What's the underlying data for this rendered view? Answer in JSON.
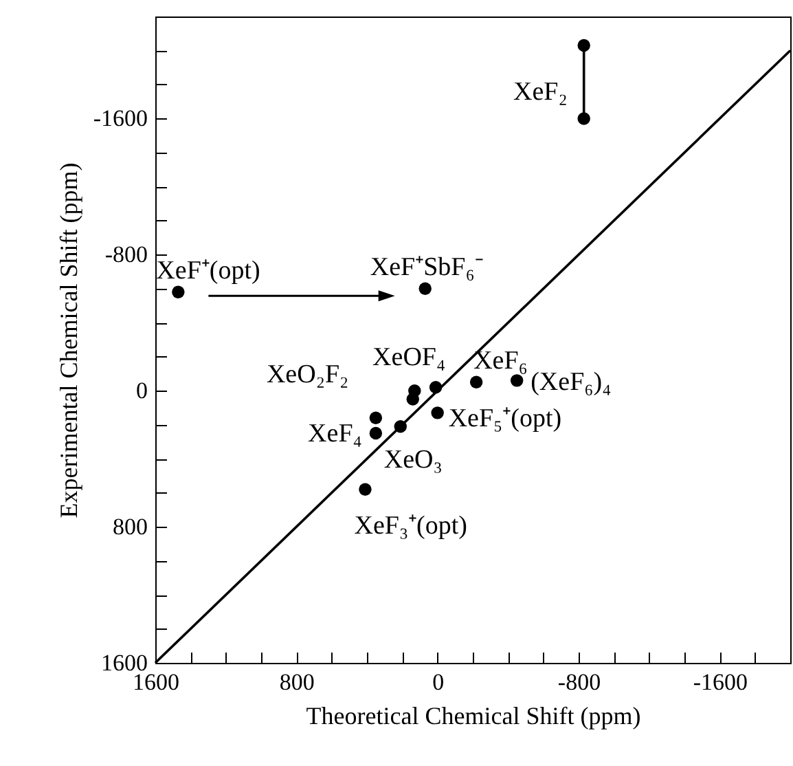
{
  "chart_data": {
    "type": "scatter",
    "xlabel": "Theoretical Chemical Shift (ppm)",
    "ylabel": "Experimental Chemical Shift (ppm)",
    "xlim": [
      1600,
      -2000
    ],
    "ylim": [
      1600,
      -2200
    ],
    "xticks": [
      1600,
      {
        "value": 1400,
        "label": null
      },
      {
        "value": 1200,
        "label": null
      },
      {
        "value": 1000,
        "label": null
      },
      800,
      {
        "value": 600,
        "label": null
      },
      {
        "value": 400,
        "label": null
      },
      {
        "value": 200,
        "label": null
      },
      0,
      {
        "value": -200,
        "label": null
      },
      {
        "value": -400,
        "label": null
      },
      {
        "value": -600,
        "label": null
      },
      -800,
      {
        "value": -1000,
        "label": null
      },
      {
        "value": -1200,
        "label": null
      },
      {
        "value": -1400,
        "label": null
      },
      -1600,
      {
        "value": -1800,
        "label": null
      },
      {
        "value": -2000,
        "label": null
      }
    ],
    "yticks": [
      1600,
      {
        "value": 1400,
        "label": null
      },
      {
        "value": 1200,
        "label": null
      },
      {
        "value": 1000,
        "label": null
      },
      800,
      {
        "value": 600,
        "label": null
      },
      {
        "value": 400,
        "label": null
      },
      {
        "value": 200,
        "label": null
      },
      0,
      {
        "value": -200,
        "label": null
      },
      {
        "value": -400,
        "label": null
      },
      {
        "value": -600,
        "label": null
      },
      -800,
      {
        "value": -1000,
        "label": null
      },
      {
        "value": -1200,
        "label": null
      },
      {
        "value": -1400,
        "label": null
      },
      -1600,
      {
        "value": -1800,
        "label": null
      },
      {
        "value": -2000,
        "label": null
      }
    ],
    "marker": "circle",
    "series": [
      {
        "color": "#000000",
        "x": [
          1470,
          70,
          -450,
          -220,
          10,
          130,
          140,
          350,
          350,
          210,
          410,
          0
        ],
        "values": [
          -580,
          -600,
          -60,
          -50,
          -20,
          0,
          50,
          160,
          250,
          210,
          580,
          130
        ]
      },
      {
        "type": "line",
        "color": "#000000",
        "x": [
          -830,
          -830
        ],
        "values": [
          -2030,
          -1600
        ]
      },
      {
        "type": "line",
        "color": "#000000",
        "marker": "none",
        "x": [
          1600,
          -2000
        ],
        "values": [
          1600,
          -2000
        ]
      }
    ],
    "annotations": [
      {
        "text": "XeF₂",
        "x": -830,
        "y": -1800
      },
      {
        "text": "XeF⁺(opt)",
        "x": 1470,
        "y": -580
      },
      {
        "text": "XeF⁺SbF₆⁻",
        "x": 70,
        "y": -600
      },
      {
        "text": "XeOF₄",
        "x": 10,
        "y": -20
      },
      {
        "text": "XeF₆",
        "x": -220,
        "y": -50
      },
      {
        "text": "(XeF₆)₄",
        "x": -450,
        "y": -55
      },
      {
        "text": "XeO₂F₂",
        "x": 130,
        "y": 0
      },
      {
        "text": "XeF₄",
        "x": 350,
        "y": 200
      },
      {
        "text": "XeF₅⁺(opt)",
        "x": 0,
        "y": 130
      },
      {
        "text": "XeO₃",
        "x": 210,
        "y": 210
      },
      {
        "text": "XeF₃⁺(opt)",
        "x": 410,
        "y": 580
      }
    ]
  }
}
